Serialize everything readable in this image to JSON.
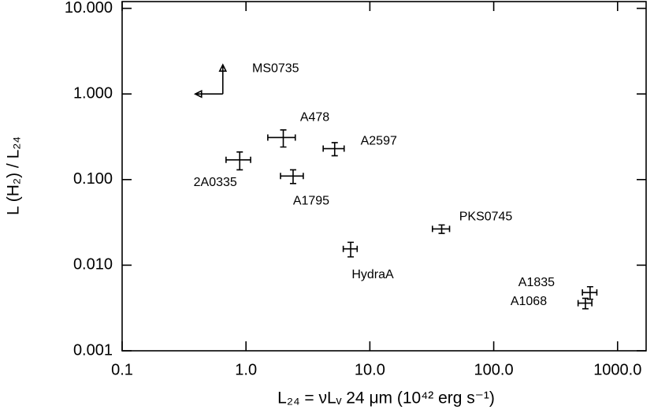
{
  "chart_data": {
    "type": "scatter",
    "xlabel": "L₂₄ = νLᵥ 24 μm (10⁴² erg s⁻¹)",
    "ylabel": "L (H₂) / L₂₄",
    "xscale": "log",
    "yscale": "log",
    "xlim": [
      0.1,
      1700
    ],
    "ylim": [
      0.001,
      12
    ],
    "xticks": [
      {
        "value": 0.1,
        "label": "0.1"
      },
      {
        "value": 1,
        "label": "1.0"
      },
      {
        "value": 10,
        "label": "10.0"
      },
      {
        "value": 100,
        "label": "100.0"
      },
      {
        "value": 1000,
        "label": "1000.0"
      }
    ],
    "yticks": [
      {
        "value": 0.001,
        "label": "0.001"
      },
      {
        "value": 0.01,
        "label": "0.010"
      },
      {
        "value": 0.1,
        "label": "0.100"
      },
      {
        "value": 1,
        "label": "1.000"
      },
      {
        "value": 10,
        "label": "10.000"
      }
    ],
    "color": "#000000",
    "labels": [
      "2A0335",
      "A478",
      "A1795",
      "A2597",
      "HydraA",
      "PKS0745",
      "A1835",
      "A1068"
    ],
    "x": [
      0.89,
      2.0,
      2.4,
      5.2,
      7.0,
      38,
      600,
      550
    ],
    "y": [
      0.17,
      0.31,
      0.11,
      0.23,
      0.0155,
      0.0265,
      0.0048,
      0.0036
    ],
    "xerr": [
      0.2,
      0.5,
      0.5,
      1.0,
      0.9,
      6,
      80,
      70
    ],
    "yerr": [
      0.04,
      0.07,
      0.02,
      0.04,
      0.003,
      0.003,
      0.0008,
      0.0005
    ],
    "limit": {
      "name": "MS0735",
      "x": 0.65,
      "y": 1.0
    }
  }
}
